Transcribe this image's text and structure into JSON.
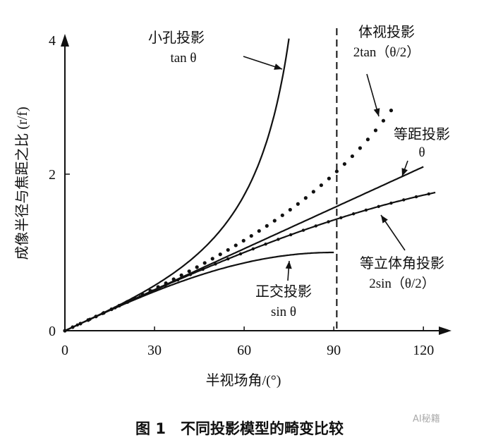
{
  "chart_data": {
    "type": "line",
    "xlabel": "半视场角/(°)",
    "ylabel": "成像半径与焦距之比 (r/f)",
    "xlim": [
      0,
      125
    ],
    "ylim": [
      0,
      4
    ],
    "xticks": [
      "0",
      "30",
      "60",
      "90",
      "120"
    ],
    "yticks": [
      "0",
      "2",
      "4"
    ],
    "grid": false,
    "reference_line": {
      "x": 91,
      "style": "dashed"
    },
    "series": [
      {
        "name": "小孔投影",
        "formula": "tan θ",
        "x_max": 75,
        "style": "solid"
      },
      {
        "name": "体视投影",
        "formula": "2tan（θ/2）",
        "x_max": 110,
        "style": "dotted"
      },
      {
        "name": "等距投影",
        "formula": "θ",
        "x_max": 120,
        "style": "solid"
      },
      {
        "name": "等立体角投影",
        "formula": "2sin（θ/2）",
        "x_max": 124,
        "style": "solid-with-dots"
      },
      {
        "name": "正交投影",
        "formula": "sin θ",
        "x_max": 90,
        "style": "solid"
      }
    ]
  },
  "caption": "图 1　不同投影模型的畸变比较",
  "watermark": "AI秘籍"
}
